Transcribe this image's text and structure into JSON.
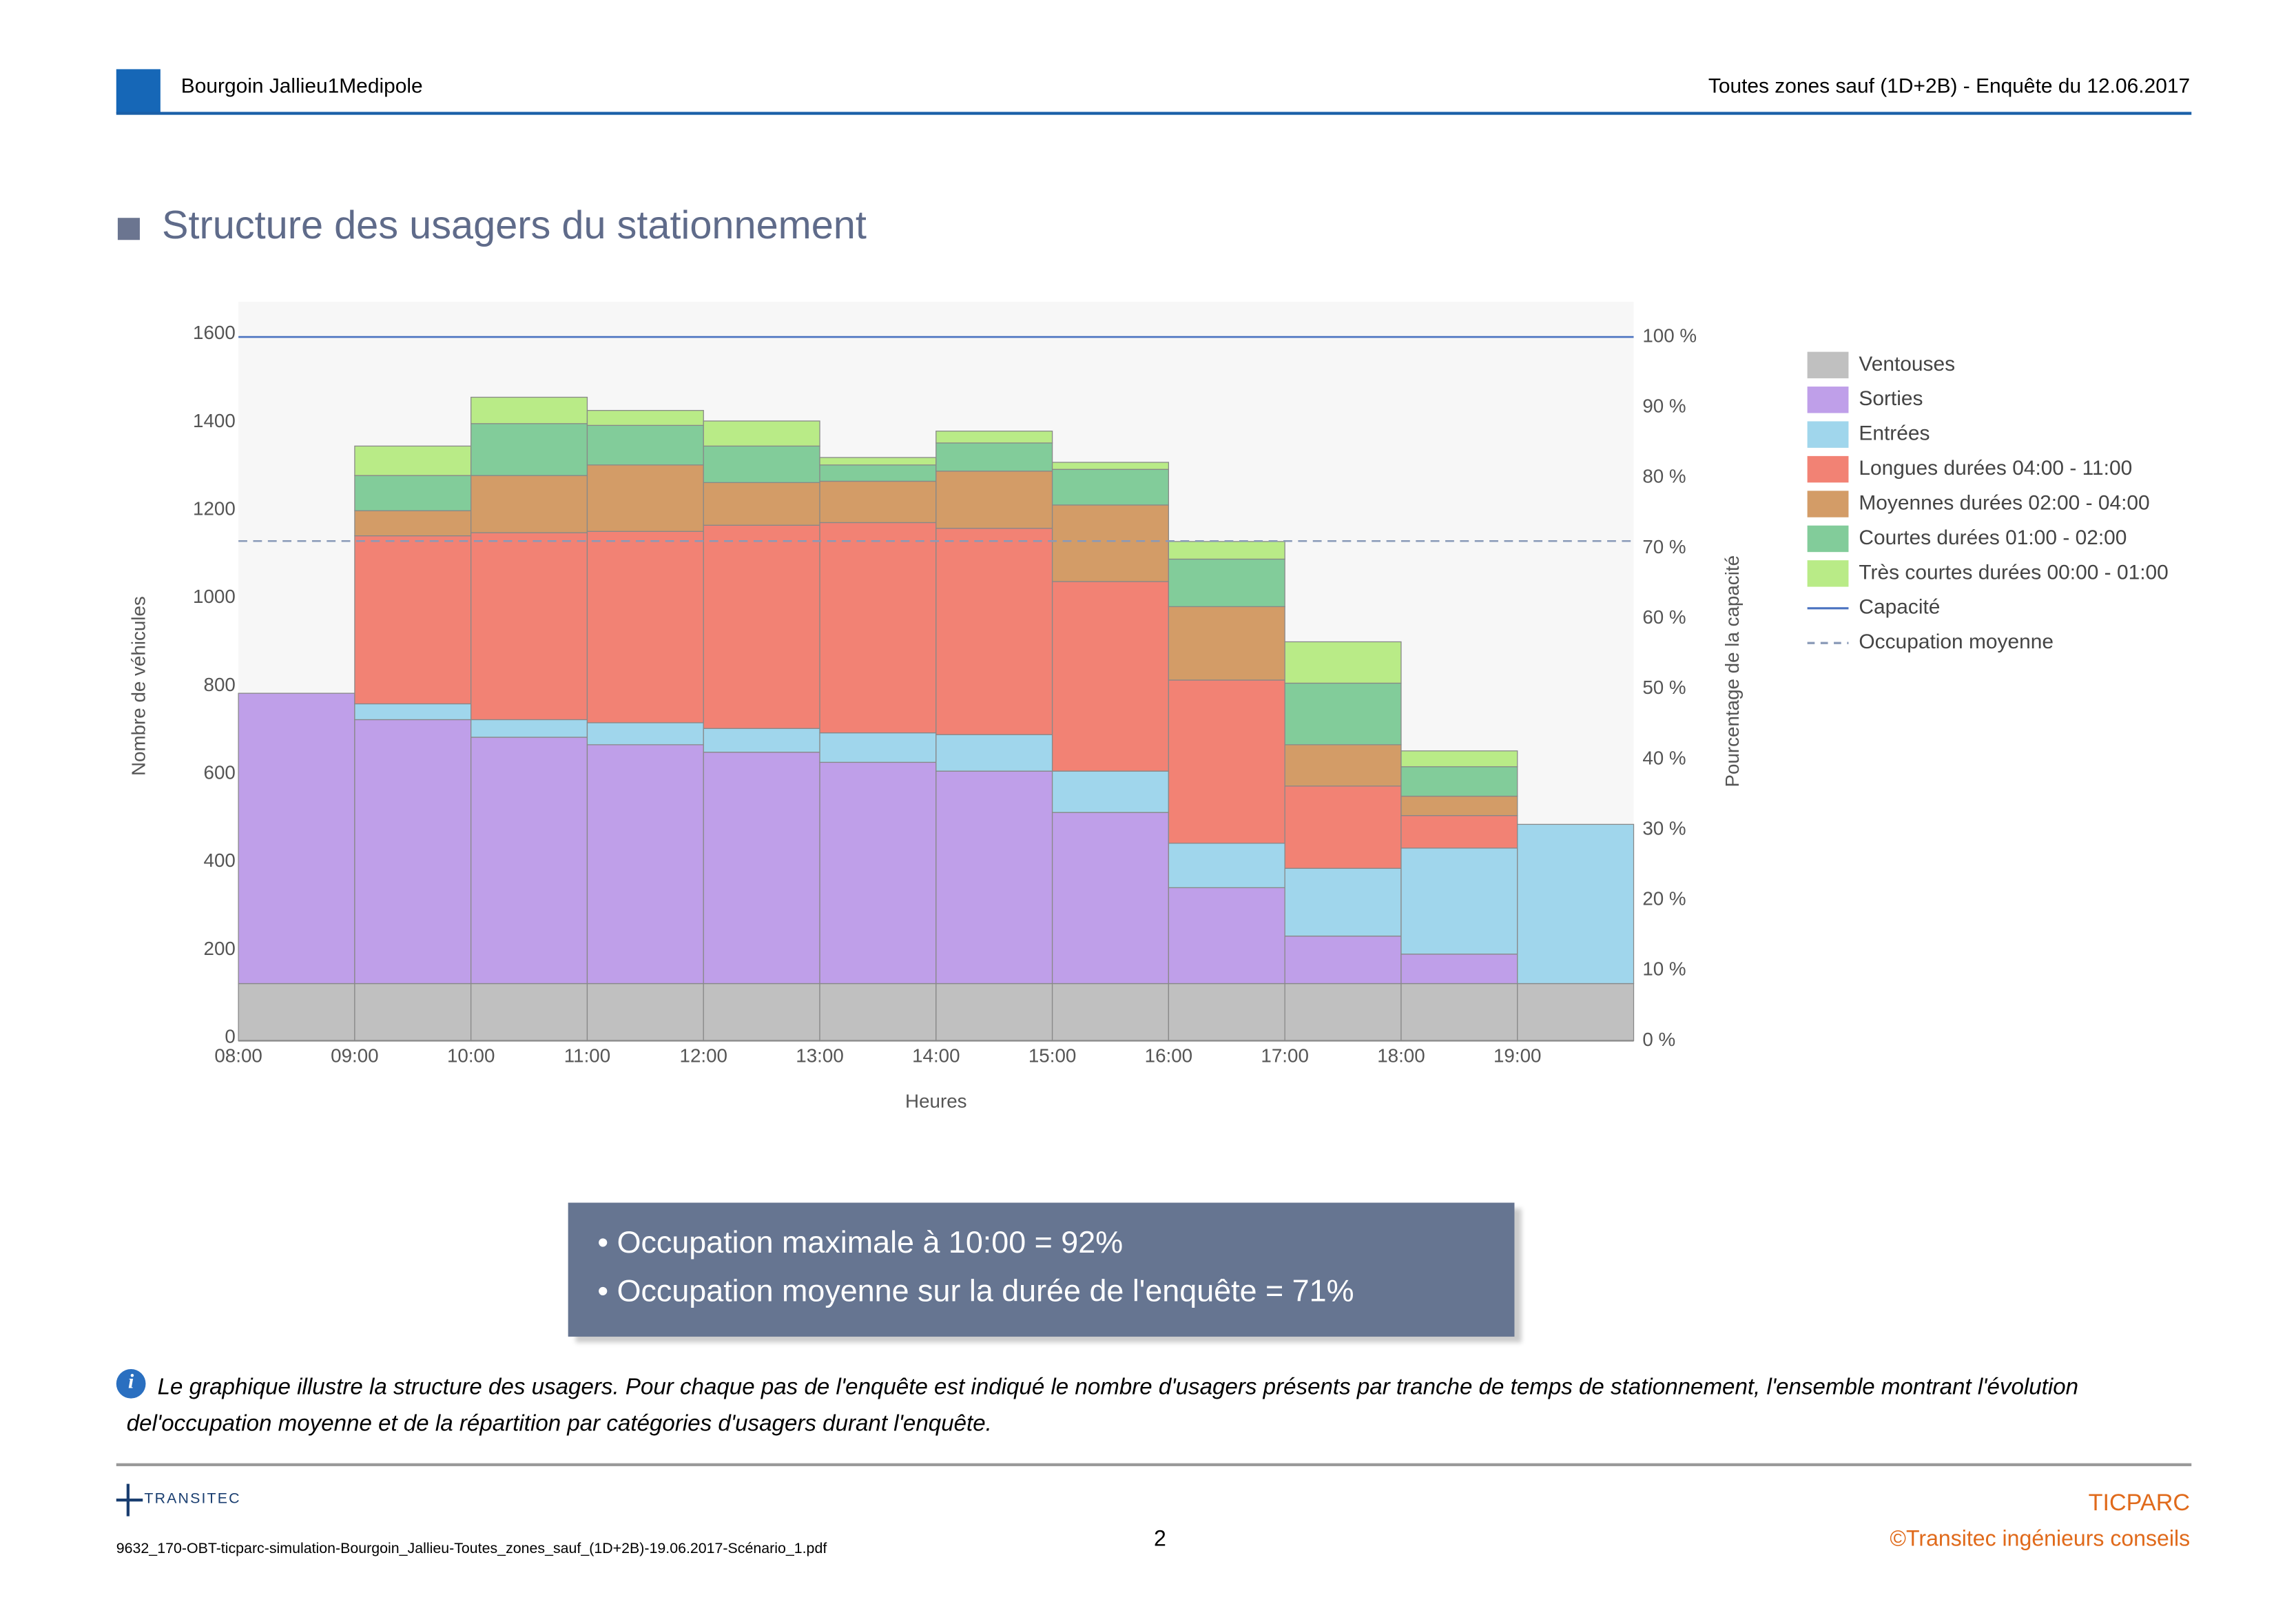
{
  "header": {
    "left": "Bourgoin Jallieu1Medipole",
    "right": "Toutes zones sauf (1D+2B) - Enquête du 12.06.2017"
  },
  "section_title": "Structure des usagers du stationnement",
  "chart_data": {
    "type": "stacked-bar",
    "x_label": "Heures",
    "y_label": "Nombre de véhicules",
    "y2_label": "Pourcentage de la capacité",
    "categories": [
      "08:00",
      "09:00",
      "10:00",
      "11:00",
      "12:00",
      "13:00",
      "14:00",
      "15:00",
      "16:00",
      "17:00",
      "18:00",
      "19:00"
    ],
    "series": [
      {
        "name": "Ventouses",
        "color": "#c0c0c0",
        "values": [
          130,
          130,
          130,
          130,
          130,
          130,
          130,
          130,
          130,
          130,
          130,
          130
        ]
      },
      {
        "name": "Sorties",
        "color": "#bf9fe9",
        "values": [
          660,
          600,
          560,
          543,
          526,
          503,
          483,
          389,
          218,
          108,
          67,
          0
        ]
      },
      {
        "name": "Entrées",
        "color": "#a0d6ec",
        "values": [
          0,
          36,
          40,
          50,
          54,
          67,
          83,
          94,
          101,
          154,
          241,
          362
        ]
      },
      {
        "name": "Longues durées 04:00 - 11:00",
        "color": "#f28274",
        "values": [
          0,
          382,
          425,
          435,
          462,
          478,
          469,
          431,
          371,
          187,
          74,
          0
        ]
      },
      {
        "name": "Moyennes durées 02:00 - 04:00",
        "color": "#d39c67",
        "values": [
          0,
          57,
          130,
          151,
          97,
          94,
          130,
          174,
          167,
          94,
          44,
          0
        ]
      },
      {
        "name": "Courtes durées 01:00 - 02:00",
        "color": "#82cc9a",
        "values": [
          0,
          80,
          118,
          90,
          83,
          37,
          64,
          81,
          108,
          140,
          67,
          0
        ]
      },
      {
        "name": "Très courtes durées 00:00 - 01:00",
        "color": "#b9eb87",
        "values": [
          0,
          67,
          60,
          34,
          57,
          17,
          27,
          16,
          40,
          94,
          36,
          0
        ]
      }
    ],
    "lines": [
      {
        "name": "Capacité",
        "value": 1600,
        "color": "#4a72c0",
        "dashed": false
      },
      {
        "name": "Occupation moyenne",
        "value": 1136,
        "color": "#8a9ab8",
        "dashed": true
      }
    ],
    "ylim": [
      0,
      1680
    ],
    "yticks": [
      0,
      200,
      400,
      600,
      800,
      1000,
      1200,
      1400,
      1600
    ],
    "y2lim": [
      0,
      105
    ],
    "y2ticks": [
      {
        "value": 0,
        "label": "0 %"
      },
      {
        "value": 10,
        "label": "10 %"
      },
      {
        "value": 20,
        "label": "20 %"
      },
      {
        "value": 30,
        "label": "30 %"
      },
      {
        "value": 40,
        "label": "40 %"
      },
      {
        "value": 50,
        "label": "50 %"
      },
      {
        "value": 60,
        "label": "60 %"
      },
      {
        "value": 70,
        "label": "70 %"
      },
      {
        "value": 80,
        "label": "80 %"
      },
      {
        "value": 90,
        "label": "90 %"
      },
      {
        "value": 100,
        "label": "100 %"
      }
    ],
    "grid": false,
    "legend": "right"
  },
  "summary": [
    "• Occupation maximale à 10:00 = 92%",
    "• Occupation moyenne sur la durée de l'enquête = 71%"
  ],
  "note": "Le graphique illustre la structure des usagers. Pour chaque pas de l'enquête est indiqué le nombre d'usagers présents par tranche de temps de stationnement, l'ensemble montrant l'évolution del'occupation moyenne et de la répartition par catégories d'usagers durant l'enquête.",
  "footer": {
    "logo": "TRANSITEC",
    "file": "9632_170-OBT-ticparc-simulation-Bourgoin_Jallieu-Toutes_zones_sauf_(1D+2B)-19.06.2017-Scénario_1.pdf",
    "page": "2",
    "product": "TICPARC",
    "copyright": "©Transitec ingénieurs conseils"
  }
}
